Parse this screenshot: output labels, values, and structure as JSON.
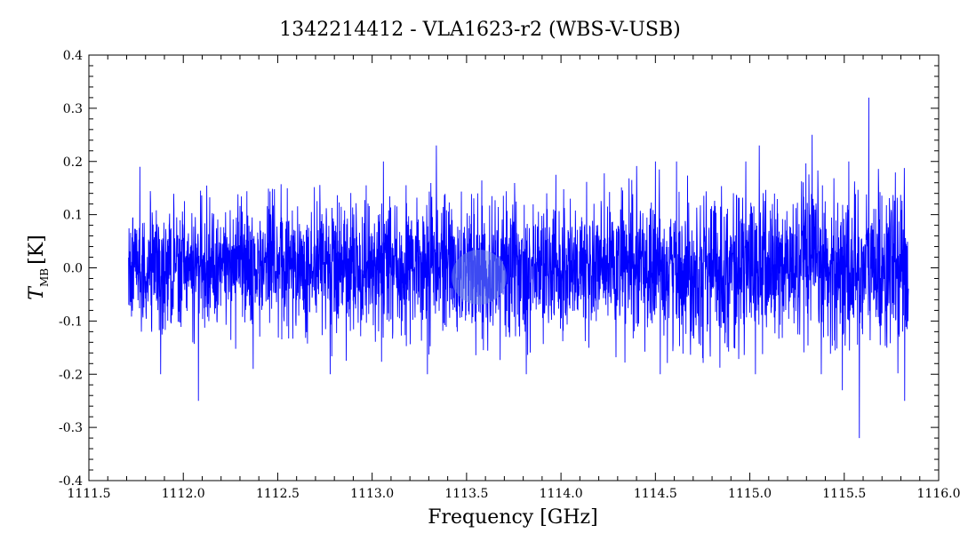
{
  "chart_data": {
    "type": "line",
    "title": "1342214412 - VLA1623-r2 (WBS-V-USB)",
    "xlabel": "Frequency [GHz]",
    "ylabel": {
      "main": "T",
      "sub": "MB",
      "unit": "[K]"
    },
    "xlim": [
      1111.5,
      1116.0
    ],
    "ylim": [
      -0.4,
      0.4
    ],
    "x_ticks": [
      1111.5,
      1112.0,
      1112.5,
      1113.0,
      1113.5,
      1114.0,
      1114.5,
      1115.0,
      1115.5,
      1116.0
    ],
    "x_tick_labels": [
      "1111.5",
      "1112.0",
      "1112.5",
      "1113.0",
      "1113.5",
      "1114.0",
      "1114.5",
      "1115.0",
      "1115.5",
      "1116.0"
    ],
    "y_ticks": [
      -0.4,
      -0.3,
      -0.2,
      -0.1,
      0.0,
      0.1,
      0.2,
      0.3,
      0.4
    ],
    "y_tick_labels": [
      "-0.4",
      "-0.3",
      "-0.2",
      "-0.1",
      "0.0",
      "0.1",
      "0.2",
      "0.3",
      "0.4"
    ],
    "grid": false,
    "series": [
      {
        "color": "#0000ff",
        "x_start": 1111.71,
        "x_end": 1115.84,
        "noise_rms_start": 0.055,
        "noise_rms_end": 0.075,
        "extremes": [
          {
            "x": 1111.77,
            "y": 0.19
          },
          {
            "x": 1111.88,
            "y": -0.2
          },
          {
            "x": 1112.08,
            "y": -0.25
          },
          {
            "x": 1112.37,
            "y": -0.19
          },
          {
            "x": 1113.34,
            "y": 0.23
          },
          {
            "x": 1115.05,
            "y": 0.23
          },
          {
            "x": 1115.33,
            "y": 0.25
          },
          {
            "x": 1115.49,
            "y": -0.23
          },
          {
            "x": 1115.58,
            "y": -0.32
          },
          {
            "x": 1115.63,
            "y": 0.32
          },
          {
            "x": 1115.82,
            "y": -0.25
          }
        ]
      }
    ]
  },
  "colors": {
    "series": "#0000ff",
    "highlight": "#6f86e8"
  }
}
